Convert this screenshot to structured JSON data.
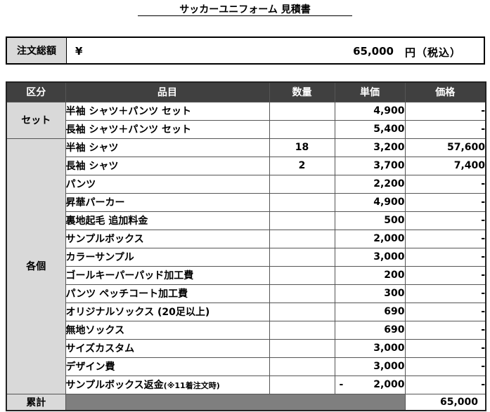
{
  "title": "サッカーユニフォーム 見積書",
  "order_total": {
    "label": "注文総額",
    "currency": "¥",
    "amount": "65,000",
    "unit": "円（税込）"
  },
  "table": {
    "headers": {
      "category": "区分",
      "item": "品目",
      "qty": "数量",
      "unit_price": "単価",
      "price": "価格"
    },
    "groups": [
      {
        "category": "セット",
        "rows": [
          {
            "item": "半袖 シャツ＋パンツ セット",
            "qty": "",
            "unit_price": "4,900",
            "price": "-"
          },
          {
            "item": "長袖 シャツ＋パンツ セット",
            "qty": "",
            "unit_price": "5,400",
            "price": "-"
          }
        ]
      },
      {
        "category": "各個",
        "rows": [
          {
            "item": "半袖 シャツ",
            "qty": "18",
            "unit_price": "3,200",
            "price": "57,600"
          },
          {
            "item": "長袖 シャツ",
            "qty": "2",
            "unit_price": "3,700",
            "price": "7,400"
          },
          {
            "item": "パンツ",
            "qty": "",
            "unit_price": "2,200",
            "price": "-"
          },
          {
            "item": "昇華パーカー",
            "qty": "",
            "unit_price": "4,900",
            "price": "-"
          },
          {
            "item": "裏地起毛 追加料金",
            "qty": "",
            "unit_price": "500",
            "price": "-"
          },
          {
            "item": "サンプルボックス",
            "qty": "",
            "unit_price": "2,000",
            "price": "-"
          },
          {
            "item": "カラーサンプル",
            "qty": "",
            "unit_price": "3,000",
            "price": "-"
          },
          {
            "item": "ゴールキーパーパッド加工費",
            "qty": "",
            "unit_price": "200",
            "price": "-"
          },
          {
            "item": "パンツ ペッチコート加工費",
            "qty": "",
            "unit_price": "300",
            "price": "-"
          },
          {
            "item": "オリジナルソックス (20足以上)",
            "qty": "",
            "unit_price": "690",
            "price": "-"
          },
          {
            "item": "無地ソックス",
            "qty": "",
            "unit_price": "690",
            "price": "-"
          },
          {
            "item": "サイズカスタム",
            "qty": "",
            "unit_price": "3,000",
            "price": "-"
          },
          {
            "item": "デザイン費",
            "qty": "",
            "unit_price": "3,000",
            "price": "-"
          },
          {
            "item": "サンプルボックス返金",
            "note": "(※11着注文時)",
            "qty": "",
            "unit_price_sign": "-",
            "unit_price": "2,000",
            "price": "-"
          }
        ]
      }
    ],
    "sum": {
      "label": "累計",
      "total": "65,000"
    }
  }
}
